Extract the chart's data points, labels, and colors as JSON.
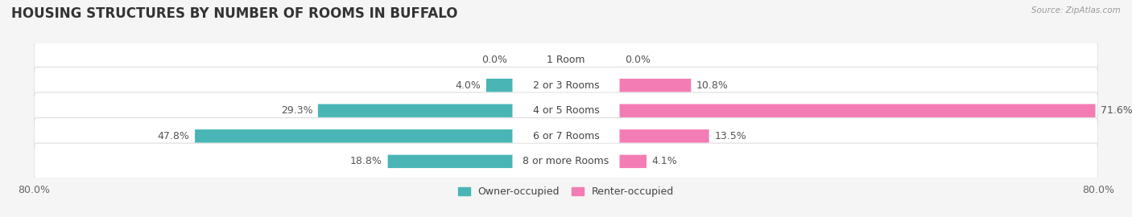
{
  "title": "HOUSING STRUCTURES BY NUMBER OF ROOMS IN BUFFALO",
  "source": "Source: ZipAtlas.com",
  "categories": [
    "1 Room",
    "2 or 3 Rooms",
    "4 or 5 Rooms",
    "6 or 7 Rooms",
    "8 or more Rooms"
  ],
  "owner_values": [
    0.0,
    4.0,
    29.3,
    47.8,
    18.8
  ],
  "renter_values": [
    0.0,
    10.8,
    71.6,
    13.5,
    4.1
  ],
  "owner_color": "#4ab5b5",
  "renter_color": "#f47cb4",
  "bg_color": "#f5f5f5",
  "row_bg_color": "#efefef",
  "row_border_color": "#dddddd",
  "axis_min": -80.0,
  "axis_max": 80.0,
  "legend_owner": "Owner-occupied",
  "legend_renter": "Renter-occupied",
  "title_fontsize": 12,
  "label_fontsize": 9,
  "category_fontsize": 9,
  "tick_fontsize": 9
}
